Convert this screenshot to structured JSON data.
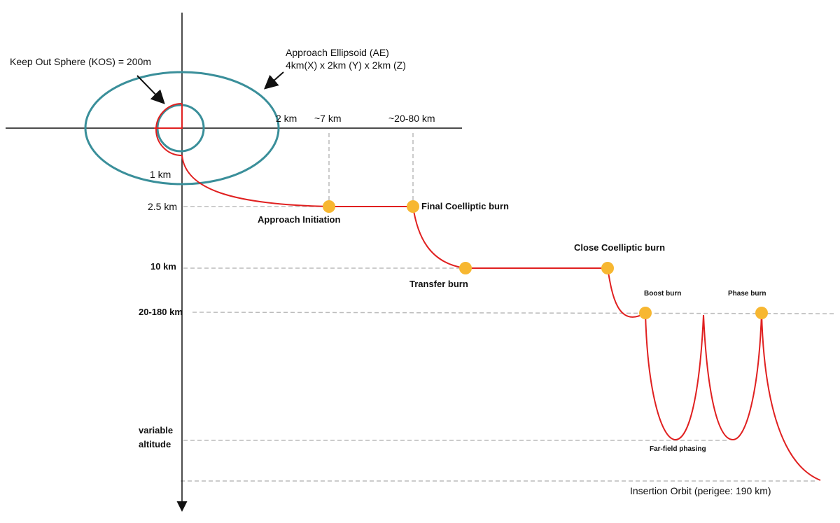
{
  "zones": {
    "kos": "Keep Out Sphere (KOS) = 200m",
    "ae_title": "Approach Ellipsoid (AE)",
    "ae_size": "4km(X) x 2km (Y) x 2km (Z)"
  },
  "x_labels": [
    "2 km",
    "~7 km",
    "~20-80 km"
  ],
  "y_labels": [
    "1 km",
    "2.5 km",
    "10 km",
    "20-180 km",
    "variable",
    "altitude"
  ],
  "burns": [
    "Approach Initiation",
    "Final Coelliptic burn",
    "Transfer burn",
    "Close Coelliptic burn",
    "Boost burn",
    "Phase burn"
  ],
  "phasing": "Far-field phasing",
  "insertion": "Insertion Orbit (perigee: 190 km)"
}
